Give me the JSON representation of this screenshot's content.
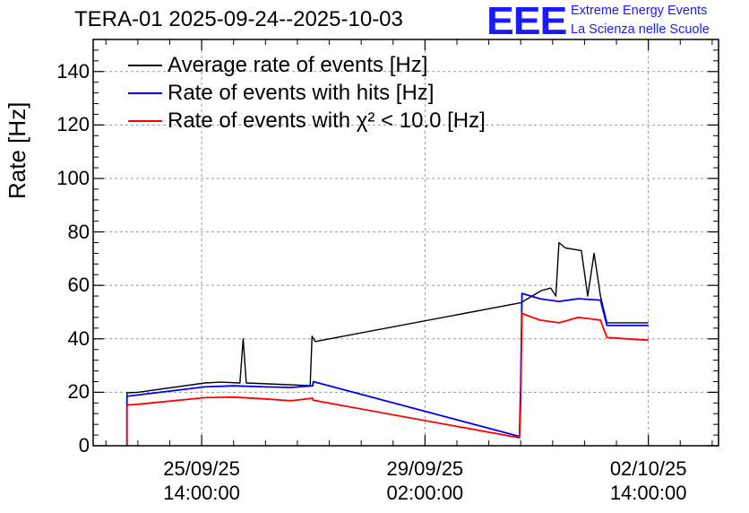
{
  "page": {
    "title": "TERA-01 2025-09-24--2025-10-03",
    "logo": {
      "mark": "EEE",
      "line1": "Extreme Energy Events",
      "line2": "La Scienza nelle Scuole",
      "color": "#1a1aff"
    }
  },
  "chart_data": {
    "type": "line",
    "title": "TERA-01 2025-09-24--2025-10-03",
    "ylabel": "Rate [Hz]",
    "xlabel": "",
    "ylim": [
      0,
      152
    ],
    "xlim": [
      -1.7,
      8.1
    ],
    "x_unit": "days since 25/09/25 14:00:00",
    "yticks": [
      "0",
      "20",
      "40",
      "60",
      "80",
      "100",
      "120",
      "140"
    ],
    "ytick_values": [
      0,
      20,
      40,
      60,
      80,
      100,
      120,
      140
    ],
    "xticks": [
      {
        "value": 0,
        "line1": "25/09/25",
        "line2": "14:00:00"
      },
      {
        "value": 3.5,
        "line1": "29/09/25",
        "line2": "02:00:00"
      },
      {
        "value": 7,
        "line1": "02/10/25",
        "line2": "14:00:00"
      }
    ],
    "grid": true,
    "legend_position": "top-left",
    "series": [
      {
        "name": "Average rate of events [Hz]",
        "color": "#000000",
        "points": [
          [
            -1.17,
            0
          ],
          [
            -1.17,
            19.8
          ],
          [
            -1.0,
            20
          ],
          [
            0.05,
            23.5
          ],
          [
            0.3,
            23.8
          ],
          [
            0.6,
            23.5
          ],
          [
            0.65,
            40
          ],
          [
            0.7,
            23.5
          ],
          [
            1.2,
            23
          ],
          [
            1.7,
            22.5
          ],
          [
            1.73,
            41
          ],
          [
            1.78,
            39
          ],
          [
            5.0,
            53.5
          ],
          [
            5.25,
            57
          ],
          [
            5.32,
            58
          ],
          [
            5.47,
            59
          ],
          [
            5.55,
            56
          ],
          [
            5.6,
            76
          ],
          [
            5.7,
            74
          ],
          [
            5.95,
            73
          ],
          [
            6.05,
            56
          ],
          [
            6.15,
            72
          ],
          [
            6.25,
            56
          ],
          [
            6.35,
            46
          ],
          [
            7.0,
            46
          ]
        ]
      },
      {
        "name": "Rate of events with hits [Hz]",
        "color": "#0000ff",
        "points": [
          [
            -1.17,
            0
          ],
          [
            -1.17,
            18.5
          ],
          [
            -1.0,
            19
          ],
          [
            0.05,
            22
          ],
          [
            0.5,
            22.4
          ],
          [
            1.0,
            22
          ],
          [
            1.4,
            21.8
          ],
          [
            1.74,
            22.4
          ],
          [
            1.75,
            24
          ],
          [
            4.98,
            3.5
          ],
          [
            5.0,
            24
          ],
          [
            5.02,
            57
          ],
          [
            5.3,
            55
          ],
          [
            5.6,
            54
          ],
          [
            5.9,
            55
          ],
          [
            6.25,
            54.5
          ],
          [
            6.35,
            45
          ],
          [
            7.0,
            45
          ]
        ]
      },
      {
        "name": "Rate of events with χ² < 10.0 [Hz]",
        "color": "#ff0000",
        "points": [
          [
            -1.17,
            0
          ],
          [
            -1.17,
            15.2
          ],
          [
            -1.0,
            15.5
          ],
          [
            0.05,
            18
          ],
          [
            0.5,
            18.2
          ],
          [
            1.0,
            17.5
          ],
          [
            1.4,
            16.8
          ],
          [
            1.74,
            17.8
          ],
          [
            1.75,
            17
          ],
          [
            4.98,
            3
          ],
          [
            5.0,
            16
          ],
          [
            5.02,
            49.5
          ],
          [
            5.3,
            47
          ],
          [
            5.6,
            46
          ],
          [
            5.9,
            48
          ],
          [
            6.25,
            47
          ],
          [
            6.35,
            40.5
          ],
          [
            7.0,
            39.5
          ]
        ]
      }
    ]
  }
}
